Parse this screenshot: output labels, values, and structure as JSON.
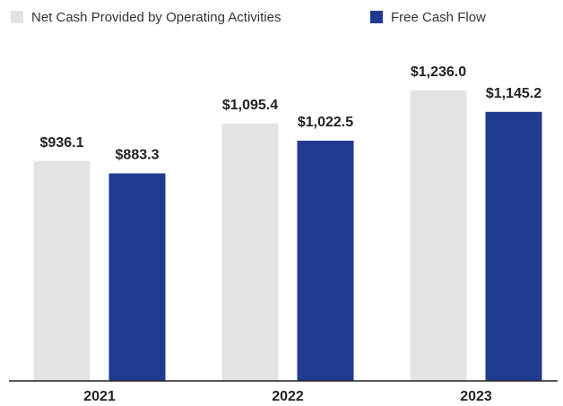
{
  "chart_data": {
    "type": "bar",
    "categories": [
      "2021",
      "2022",
      "2023"
    ],
    "series": [
      {
        "name": "Net Cash Provided by Operating Activities",
        "color": "#e3e3e3",
        "values": [
          936.1,
          1095.4,
          1236.0
        ],
        "value_labels": [
          "$936.1",
          "$1,095.4",
          "$1,236.0"
        ]
      },
      {
        "name": "Free Cash Flow",
        "color": "#203a8f",
        "values": [
          883.3,
          1022.5,
          1145.2
        ],
        "value_labels": [
          "$883.3",
          "$1,022.5",
          "$1,145.2"
        ]
      }
    ],
    "legend": "top-left"
  }
}
